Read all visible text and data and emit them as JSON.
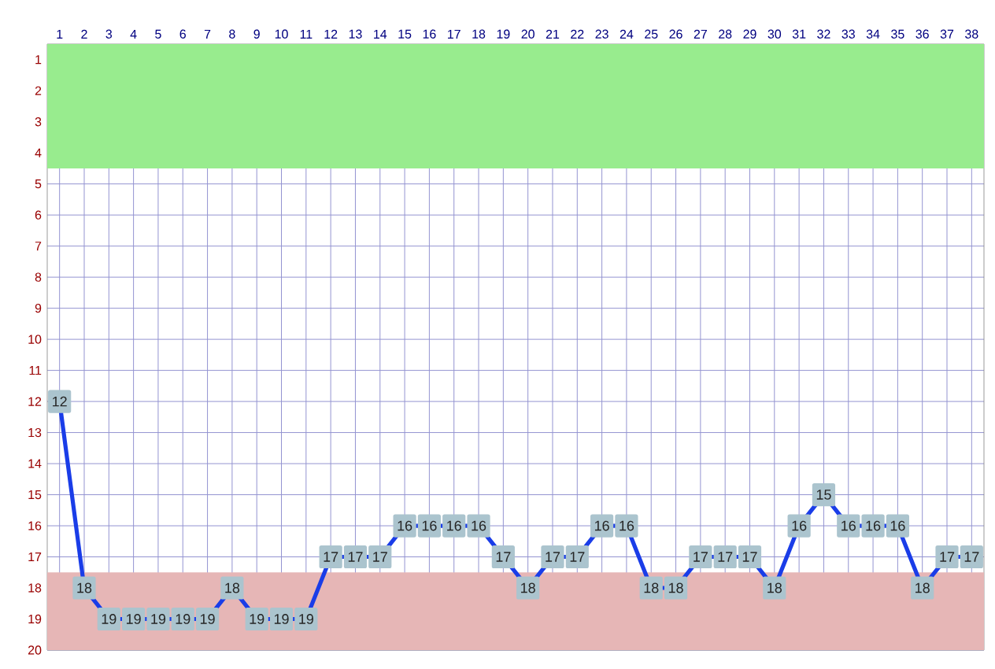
{
  "chart_data": {
    "type": "line",
    "x": [
      1,
      2,
      3,
      4,
      5,
      6,
      7,
      8,
      9,
      10,
      11,
      12,
      13,
      14,
      15,
      16,
      17,
      18,
      19,
      20,
      21,
      22,
      23,
      24,
      25,
      26,
      27,
      28,
      29,
      30,
      31,
      32,
      33,
      34,
      35,
      36,
      37,
      38
    ],
    "series": [
      {
        "color": "#1a3de8",
        "values": [
          12,
          18,
          19,
          19,
          19,
          19,
          19,
          18,
          19,
          19,
          19,
          17,
          17,
          17,
          16,
          16,
          16,
          16,
          17,
          18,
          17,
          17,
          16,
          16,
          18,
          18,
          17,
          17,
          17,
          18,
          16,
          15,
          16,
          16,
          16,
          18,
          17,
          17
        ]
      }
    ],
    "xlim": [
      0.5,
      38.5
    ],
    "ylim": [
      20,
      0.5
    ],
    "xticks": [
      1,
      2,
      3,
      4,
      5,
      6,
      7,
      8,
      9,
      10,
      11,
      12,
      13,
      14,
      15,
      16,
      17,
      18,
      19,
      20,
      21,
      22,
      23,
      24,
      25,
      26,
      27,
      28,
      29,
      30,
      31,
      32,
      33,
      34,
      35,
      36,
      37,
      38
    ],
    "yticks": [
      1,
      2,
      3,
      4,
      5,
      6,
      7,
      8,
      9,
      10,
      11,
      12,
      13,
      14,
      15,
      16,
      17,
      18,
      19,
      20
    ],
    "bands": [
      {
        "axis": "y",
        "from": 0.5,
        "to": 4.5,
        "color": "#98ec8e"
      },
      {
        "axis": "y",
        "from": 17.5,
        "to": 20,
        "color": "#e6b6b6"
      }
    ],
    "grid": true,
    "marker": "square",
    "data_labels": true,
    "line_style": "solid"
  }
}
